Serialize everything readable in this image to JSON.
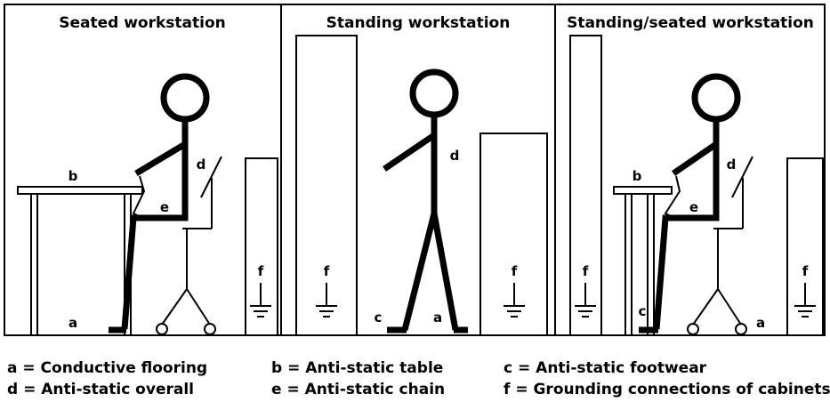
{
  "panels": [
    {
      "title": "Seated workstation",
      "labels": [
        "b",
        "d",
        "e",
        "f",
        "a"
      ]
    },
    {
      "title": "Standing workstation",
      "labels": [
        "f",
        "d",
        "c",
        "a",
        "f"
      ]
    },
    {
      "title": "Standing/seated workstation",
      "labels": [
        "f",
        "b",
        "d",
        "e",
        "c",
        "f",
        "a"
      ]
    }
  ],
  "legend": [
    [
      "a = Conductive flooring",
      "b = Anti-static table",
      "c = Anti-static footwear"
    ],
    [
      "d = Anti-static overall",
      "e = Anti-static chain",
      "f = Grounding connections of cabinets"
    ]
  ]
}
